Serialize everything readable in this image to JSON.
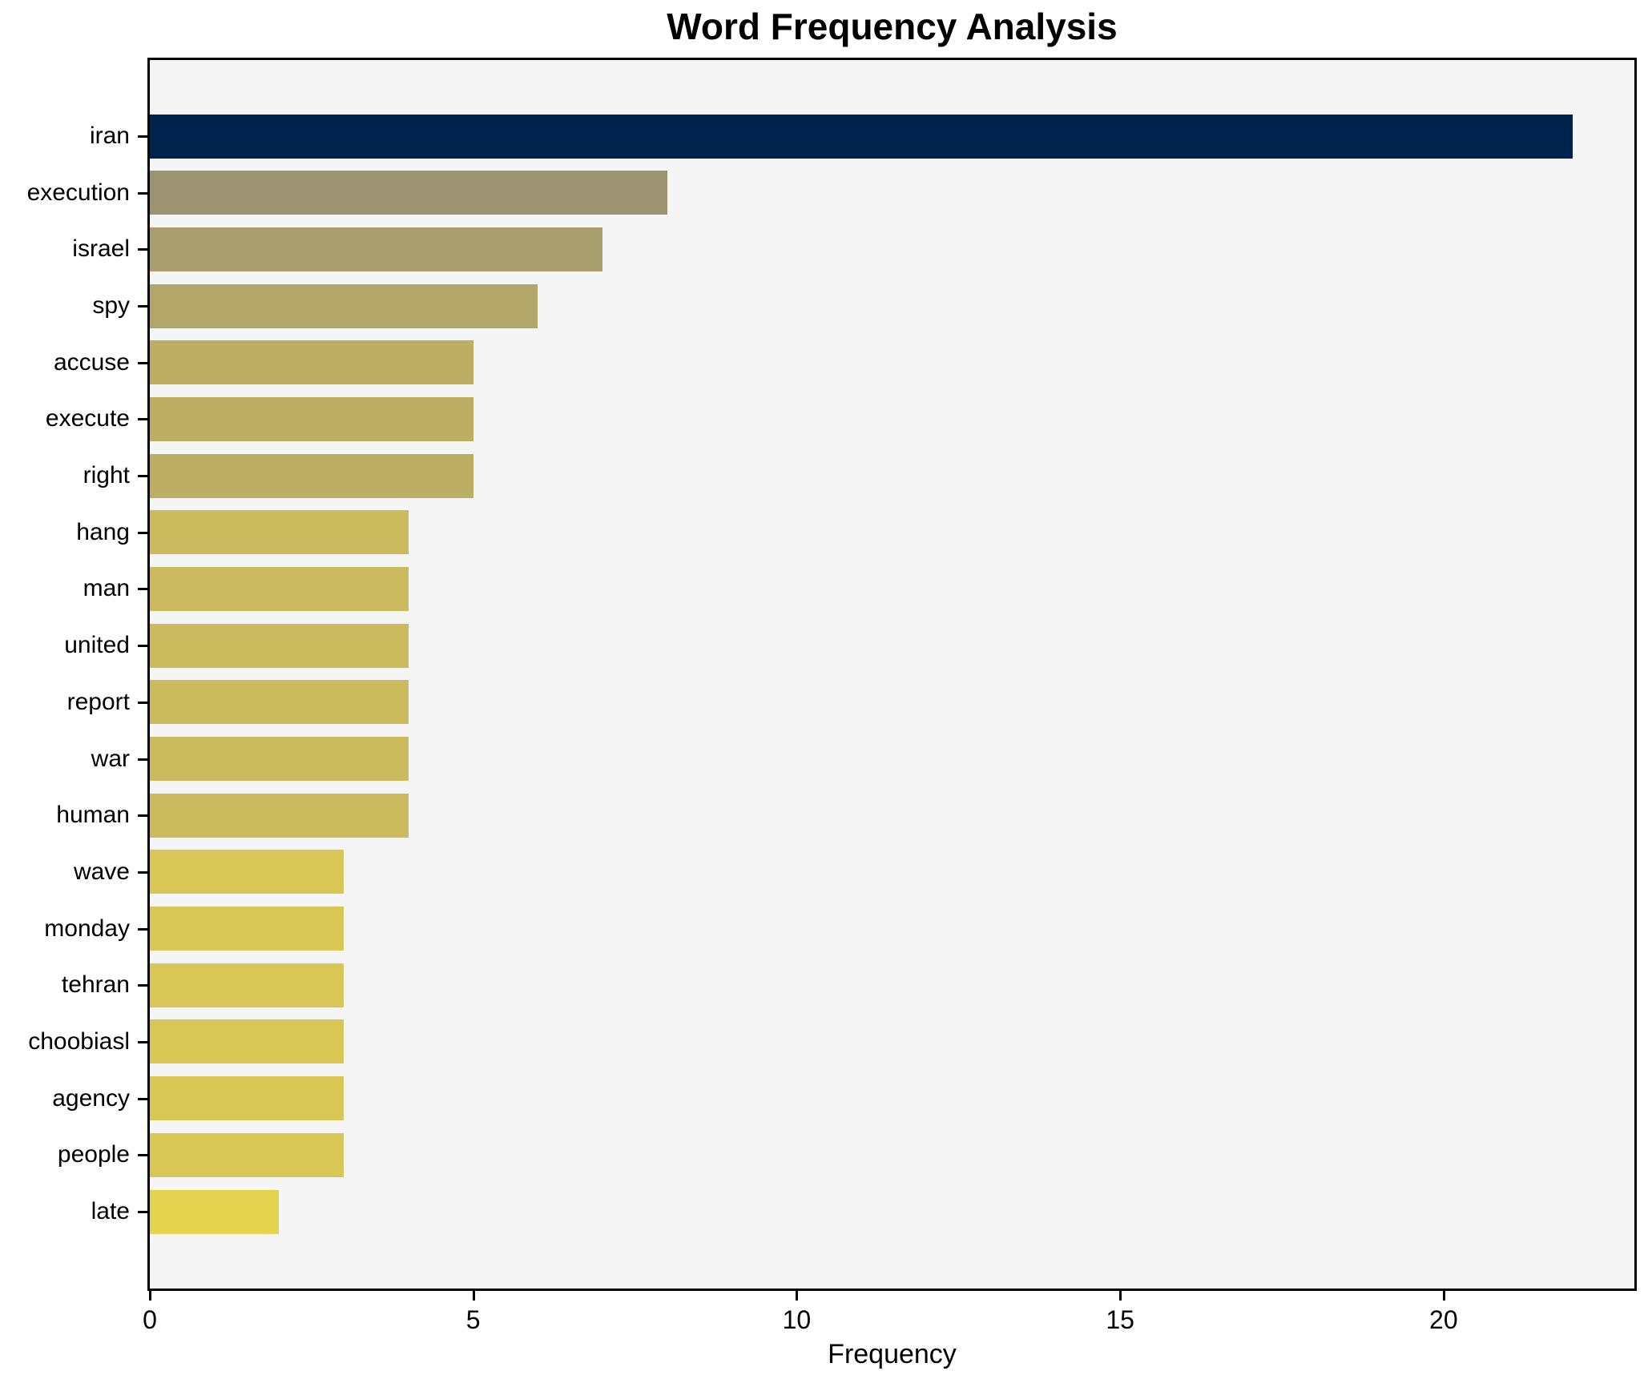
{
  "chart_data": {
    "type": "bar",
    "orientation": "horizontal",
    "title": "Word Frequency Analysis",
    "xlabel": "Frequency",
    "ylabel": "",
    "categories": [
      "iran",
      "execution",
      "israel",
      "spy",
      "accuse",
      "execute",
      "right",
      "hang",
      "man",
      "united",
      "report",
      "war",
      "human",
      "wave",
      "monday",
      "tehran",
      "choobiasl",
      "agency",
      "people",
      "late"
    ],
    "values": [
      22,
      8,
      7,
      6,
      5,
      5,
      5,
      4,
      4,
      4,
      4,
      4,
      4,
      3,
      3,
      3,
      3,
      3,
      3,
      2
    ],
    "bar_colors": [
      "#00234e",
      "#9c9372",
      "#a99f6e",
      "#b2a768",
      "#bcae62",
      "#bcae62",
      "#bcae62",
      "#cbbb5c",
      "#cbbb5c",
      "#cbbb5c",
      "#cbbb5c",
      "#cbbb5c",
      "#cbbb5c",
      "#d8c755",
      "#d8c755",
      "#d8c755",
      "#d8c755",
      "#d8c755",
      "#d8c755",
      "#e5d34f"
    ],
    "x_ticks": [
      0,
      5,
      10,
      15,
      20
    ],
    "xlim": [
      0,
      22.95
    ],
    "grid": false,
    "legend": null,
    "plot_background": "#f5f5f5",
    "figure_background": "#ffffff",
    "spine_color": "#000000",
    "text_color": "#000000"
  }
}
